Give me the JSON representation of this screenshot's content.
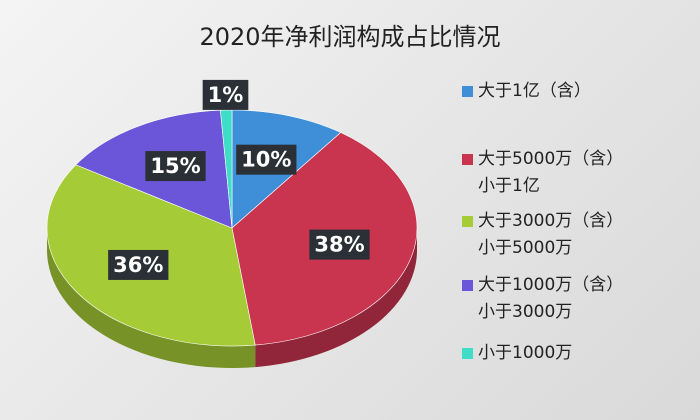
{
  "chart_data": {
    "type": "pie",
    "title": "2020年净利润构成占比情况",
    "categories": [
      "大于1亿（含）",
      "大于5000万（含）\n小于1亿",
      "大于3000万（含）\n小于5000万",
      "大于1000万（含）\n小于3000万",
      "小于1000万"
    ],
    "values": [
      10,
      38,
      36,
      15,
      1
    ],
    "value_labels": [
      "10%",
      "38%",
      "36%",
      "15%",
      "1%"
    ],
    "colors": [
      "#3f8fd8",
      "#c9344f",
      "#a5cc37",
      "#6b55d8",
      "#3fdcc8"
    ]
  }
}
